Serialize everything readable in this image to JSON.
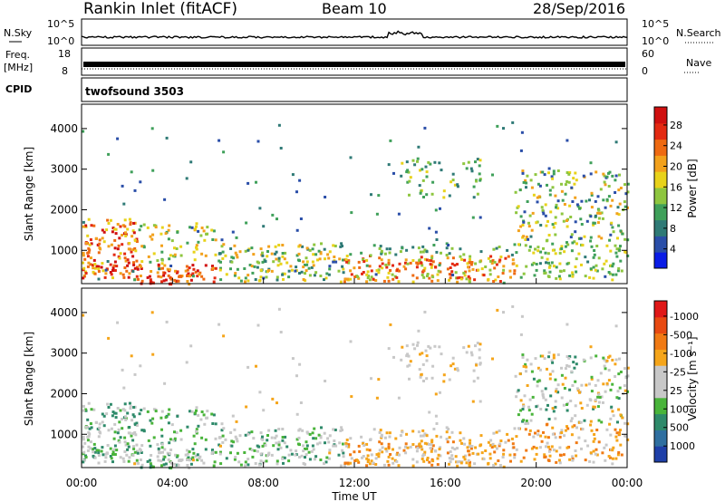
{
  "header": {
    "site": "Rankin Inlet (fitACF)",
    "beam": "Beam 10",
    "date": "28/Sep/2016"
  },
  "strips": {
    "nsky_label": "N.Sky",
    "nsearch_label": "N.Search",
    "nsky_ticks": [
      "10^5",
      "10^0"
    ],
    "nsearch_ticks": [
      "10^5",
      "10^0"
    ],
    "freq_label": "Freq.",
    "freq_unit": "[MHz]",
    "freq_ticks": [
      "18",
      "8"
    ],
    "nave_label": "Nave",
    "nave_ticks": [
      "60",
      "0"
    ],
    "cpid_label": "CPID",
    "cpid_value": "twofsound 3503"
  },
  "chart_data": [
    {
      "type": "heatmap",
      "name": "power-panel",
      "ylabel": "Slant Range [km]",
      "ylim": [
        180,
        4600
      ],
      "yticks": [
        1000,
        2000,
        3000,
        4000
      ],
      "xlim": [
        0,
        24
      ],
      "colorbar": {
        "label": "Power [dB]",
        "ticks": [
          "4",
          "8",
          "12",
          "16",
          "20",
          "24",
          "28"
        ],
        "colors": [
          "#0a1ce6",
          "#2a4ea8",
          "#2f7a76",
          "#3fa05a",
          "#8ec63f",
          "#e8d21a",
          "#f2a11c",
          "#ee6a12",
          "#e32a12",
          "#d01010"
        ]
      }
    },
    {
      "type": "heatmap",
      "name": "velocity-panel",
      "ylabel": "Slant Range [km]",
      "ylim": [
        180,
        4600
      ],
      "yticks": [
        1000,
        2000,
        3000,
        4000
      ],
      "xlim": [
        0,
        24
      ],
      "xticks": [
        "00:00",
        "04:00",
        "08:00",
        "12:00",
        "16:00",
        "20:00",
        "00:00"
      ],
      "xlabel": "Time UT",
      "colorbar": {
        "label": "Velocity [m s⁻¹]",
        "ticks": [
          "1000",
          "500",
          "100",
          "25",
          "-25",
          "-100",
          "-500",
          "-1000"
        ],
        "colors": [
          "#1e3fa8",
          "#2f6fa0",
          "#2e8a6a",
          "#49b43a",
          "#c8c8c8",
          "#c8c8c8",
          "#f5a51a",
          "#f07a14",
          "#e84a12",
          "#e01818"
        ]
      }
    }
  ]
}
